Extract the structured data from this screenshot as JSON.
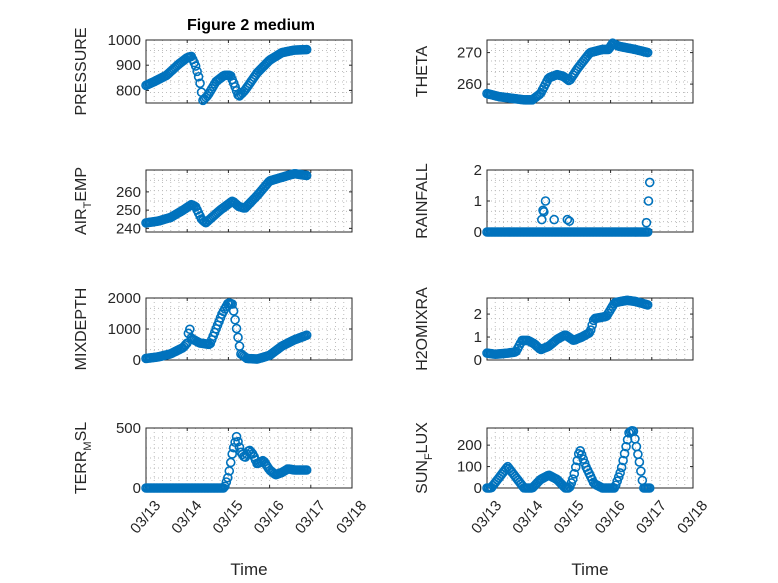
{
  "figure": {
    "title": "Figure 2 medium",
    "marker_color": "#0072bd",
    "marker": "circle"
  },
  "chart_data": [
    {
      "type": "scatter",
      "title": "Figure 2 medium",
      "ylabel": "PRESSURE",
      "xlabel": "",
      "ylim": [
        750,
        1000
      ],
      "yticks": [
        800,
        900,
        1000
      ],
      "ytick_labels": [
        "800",
        "900",
        "1000"
      ],
      "xlim": [
        0,
        5
      ],
      "xticks": [
        0,
        1,
        2,
        3,
        4,
        5
      ],
      "grid": true,
      "keyframes": [
        [
          0,
          820
        ],
        [
          0.2,
          835
        ],
        [
          0.5,
          860
        ],
        [
          0.8,
          905
        ],
        [
          1.0,
          930
        ],
        [
          1.1,
          935
        ],
        [
          1.2,
          900
        ],
        [
          1.3,
          840
        ],
        [
          1.38,
          760
        ],
        [
          1.5,
          780
        ],
        [
          1.7,
          835
        ],
        [
          1.9,
          860
        ],
        [
          2.05,
          860
        ],
        [
          2.15,
          820
        ],
        [
          2.25,
          775
        ],
        [
          2.4,
          800
        ],
        [
          2.7,
          870
        ],
        [
          3.0,
          920
        ],
        [
          3.3,
          950
        ],
        [
          3.6,
          960
        ],
        [
          3.9,
          962
        ]
      ]
    },
    {
      "type": "scatter",
      "ylabel": "THETA",
      "xlabel": "",
      "ylim": [
        254,
        274
      ],
      "yticks": [
        260,
        270
      ],
      "ytick_labels": [
        "260",
        "270"
      ],
      "xlim": [
        0,
        5
      ],
      "xticks": [
        0,
        1,
        2,
        3,
        4,
        5
      ],
      "grid": true,
      "keyframes": [
        [
          0,
          257
        ],
        [
          0.3,
          256
        ],
        [
          0.6,
          255.5
        ],
        [
          0.9,
          255
        ],
        [
          1.1,
          255
        ],
        [
          1.3,
          257
        ],
        [
          1.5,
          262
        ],
        [
          1.7,
          263
        ],
        [
          1.85,
          262.5
        ],
        [
          2.0,
          261
        ],
        [
          2.2,
          265
        ],
        [
          2.5,
          270
        ],
        [
          2.8,
          271
        ],
        [
          2.95,
          271
        ],
        [
          3.05,
          273
        ],
        [
          3.2,
          272
        ],
        [
          3.6,
          271
        ],
        [
          3.9,
          270
        ]
      ]
    },
    {
      "type": "scatter",
      "ylabel": "AIR_TEMP",
      "ylabel_main": "AIR",
      "ylabel_sub": "T",
      "ylabel_tail": "EMP",
      "xlabel": "",
      "ylim": [
        238,
        272
      ],
      "yticks": [
        240,
        250,
        260
      ],
      "ytick_labels": [
        "240",
        "250",
        "260"
      ],
      "xlim": [
        0,
        5
      ],
      "xticks": [
        0,
        1,
        2,
        3,
        4,
        5
      ],
      "grid": true,
      "keyframes": [
        [
          0,
          243
        ],
        [
          0.3,
          244
        ],
        [
          0.6,
          246
        ],
        [
          0.9,
          250
        ],
        [
          1.1,
          253
        ],
        [
          1.2,
          252
        ],
        [
          1.35,
          245
        ],
        [
          1.45,
          243
        ],
        [
          1.6,
          246
        ],
        [
          1.8,
          250
        ],
        [
          2.1,
          255
        ],
        [
          2.25,
          252
        ],
        [
          2.4,
          251
        ],
        [
          2.7,
          258
        ],
        [
          3.0,
          266
        ],
        [
          3.3,
          268
        ],
        [
          3.6,
          270
        ],
        [
          3.9,
          269
        ]
      ]
    },
    {
      "type": "scatter",
      "ylabel": "RAINFALL",
      "xlabel": "",
      "ylim": [
        0,
        2
      ],
      "yticks": [
        0,
        1,
        2
      ],
      "ytick_labels": [
        "0",
        "1",
        "2"
      ],
      "xlim": [
        0,
        5
      ],
      "xticks": [
        0,
        1,
        2,
        3,
        4,
        5
      ],
      "grid": true,
      "keyframes": [
        [
          0,
          0
        ],
        [
          3.9,
          0
        ]
      ],
      "extra_points": [
        [
          1.33,
          0.4
        ],
        [
          1.36,
          0.7
        ],
        [
          1.38,
          0.65
        ],
        [
          1.42,
          1.0
        ],
        [
          1.63,
          0.4
        ],
        [
          1.95,
          0.4
        ],
        [
          2.0,
          0.35
        ],
        [
          3.87,
          0.3
        ],
        [
          3.92,
          1.0
        ],
        [
          3.95,
          1.6
        ]
      ]
    },
    {
      "type": "scatter",
      "ylabel": "MIXDEPTH",
      "xlabel": "",
      "ylim": [
        0,
        2000
      ],
      "yticks": [
        0,
        1000,
        2000
      ],
      "ytick_labels": [
        "0",
        "1000",
        "2000"
      ],
      "xlim": [
        0,
        5
      ],
      "xticks": [
        0,
        1,
        2,
        3,
        4,
        5
      ],
      "grid": true,
      "keyframes": [
        [
          0,
          50
        ],
        [
          0.3,
          100
        ],
        [
          0.6,
          200
        ],
        [
          0.9,
          400
        ],
        [
          1.0,
          550
        ],
        [
          1.05,
          1100
        ],
        [
          1.1,
          700
        ],
        [
          1.3,
          550
        ],
        [
          1.55,
          500
        ],
        [
          1.7,
          1000
        ],
        [
          1.85,
          1500
        ],
        [
          2.0,
          1850
        ],
        [
          2.1,
          1800
        ],
        [
          2.2,
          1000
        ],
        [
          2.3,
          200
        ],
        [
          2.45,
          50
        ],
        [
          2.7,
          30
        ],
        [
          3.0,
          150
        ],
        [
          3.3,
          450
        ],
        [
          3.6,
          650
        ],
        [
          3.9,
          800
        ]
      ]
    },
    {
      "type": "scatter",
      "ylabel": "H2OMIXRA",
      "xlabel": "",
      "ylim": [
        0,
        2.7
      ],
      "yticks": [
        0,
        1,
        2
      ],
      "ytick_labels": [
        "0",
        "1",
        "2"
      ],
      "xlim": [
        0,
        5
      ],
      "xticks": [
        0,
        1,
        2,
        3,
        4,
        5
      ],
      "grid": true,
      "keyframes": [
        [
          0,
          0.3
        ],
        [
          0.2,
          0.25
        ],
        [
          0.5,
          0.3
        ],
        [
          0.7,
          0.35
        ],
        [
          0.85,
          0.85
        ],
        [
          1.0,
          0.85
        ],
        [
          1.15,
          0.7
        ],
        [
          1.3,
          0.45
        ],
        [
          1.5,
          0.6
        ],
        [
          1.7,
          0.9
        ],
        [
          1.9,
          1.1
        ],
        [
          2.1,
          0.85
        ],
        [
          2.3,
          1.0
        ],
        [
          2.5,
          1.2
        ],
        [
          2.6,
          1.8
        ],
        [
          2.9,
          1.9
        ],
        [
          3.1,
          2.5
        ],
        [
          3.4,
          2.6
        ],
        [
          3.6,
          2.55
        ],
        [
          3.9,
          2.4
        ]
      ]
    },
    {
      "type": "scatter",
      "ylabel": "TERR_MSL",
      "ylabel_main": "TERR",
      "ylabel_sub": "M",
      "ylabel_tail": "SL",
      "xlabel": "Time",
      "ylim": [
        0,
        500
      ],
      "yticks": [
        0,
        500
      ],
      "ytick_labels": [
        "0",
        "500"
      ],
      "xlim": [
        0,
        5
      ],
      "xticks": [
        0,
        1,
        2,
        3,
        4,
        5
      ],
      "xtick_labels": [
        "03/13",
        "03/14",
        "03/15",
        "03/16",
        "03/17",
        "03/18"
      ],
      "grid": true,
      "keyframes": [
        [
          0,
          0
        ],
        [
          1.9,
          0
        ],
        [
          2.0,
          100
        ],
        [
          2.1,
          300
        ],
        [
          2.2,
          430
        ],
        [
          2.3,
          300
        ],
        [
          2.4,
          250
        ],
        [
          2.5,
          320
        ],
        [
          2.6,
          280
        ],
        [
          2.7,
          200
        ],
        [
          2.85,
          230
        ],
        [
          3.0,
          150
        ],
        [
          3.15,
          110
        ],
        [
          3.3,
          130
        ],
        [
          3.45,
          160
        ],
        [
          3.6,
          150
        ],
        [
          3.9,
          150
        ]
      ]
    },
    {
      "type": "scatter",
      "ylabel": "SUN_FLUX",
      "ylabel_main": "SUN",
      "ylabel_sub": "F",
      "ylabel_tail": "LUX",
      "xlabel": "Time",
      "ylim": [
        0,
        280
      ],
      "yticks": [
        0,
        100,
        200
      ],
      "ytick_labels": [
        "0",
        "100",
        "200"
      ],
      "xlim": [
        0,
        5
      ],
      "xticks": [
        0,
        1,
        2,
        3,
        4,
        5
      ],
      "xtick_labels": [
        "03/13",
        "03/14",
        "03/15",
        "03/16",
        "03/17",
        "03/18"
      ],
      "grid": true,
      "keyframes": [
        [
          0,
          0
        ],
        [
          0.1,
          0
        ],
        [
          0.3,
          50
        ],
        [
          0.5,
          100
        ],
        [
          0.7,
          50
        ],
        [
          0.9,
          0
        ],
        [
          1.1,
          0
        ],
        [
          1.3,
          40
        ],
        [
          1.5,
          60
        ],
        [
          1.7,
          40
        ],
        [
          1.9,
          0
        ],
        [
          2.0,
          0
        ],
        [
          2.1,
          50
        ],
        [
          2.25,
          180
        ],
        [
          2.4,
          100
        ],
        [
          2.6,
          20
        ],
        [
          2.8,
          0
        ],
        [
          3.1,
          0
        ],
        [
          3.25,
          80
        ],
        [
          3.45,
          260
        ],
        [
          3.55,
          270
        ],
        [
          3.7,
          120
        ],
        [
          3.8,
          0
        ],
        [
          3.95,
          0
        ]
      ]
    }
  ]
}
